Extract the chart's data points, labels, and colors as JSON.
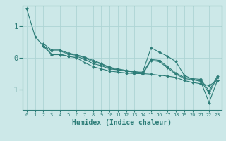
{
  "xlabel": "Humidex (Indice chaleur)",
  "bg_color": "#cce8e8",
  "grid_color": "#aed4d4",
  "line_color": "#2d7d78",
  "xlim": [
    -0.5,
    23.5
  ],
  "ylim": [
    -1.65,
    1.65
  ],
  "yticks": [
    -1,
    0,
    1
  ],
  "xticks": [
    0,
    1,
    2,
    3,
    4,
    5,
    6,
    7,
    8,
    9,
    10,
    11,
    12,
    13,
    14,
    15,
    16,
    17,
    18,
    19,
    20,
    21,
    22,
    23
  ],
  "series": [
    {
      "x": [
        0,
        1,
        2,
        3,
        4,
        5,
        6,
        7,
        8,
        9,
        10,
        11,
        12,
        13,
        14,
        15,
        16,
        17,
        18,
        19,
        20,
        21,
        22,
        23
      ],
      "y": [
        1.55,
        0.68,
        0.37,
        0.1,
        0.1,
        0.05,
        0.0,
        -0.15,
        -0.28,
        -0.35,
        -0.42,
        -0.45,
        -0.48,
        -0.5,
        -0.5,
        -0.52,
        -0.55,
        -0.58,
        -0.62,
        -0.72,
        -0.78,
        -0.82,
        -0.88,
        -0.72
      ]
    },
    {
      "x": [
        2,
        3,
        4,
        5,
        6,
        7,
        8,
        9,
        10,
        11,
        12,
        13,
        14,
        15,
        16,
        17,
        18,
        19,
        20,
        21,
        22,
        23
      ],
      "y": [
        0.38,
        0.12,
        0.12,
        0.05,
        0.05,
        -0.05,
        -0.18,
        -0.25,
        -0.35,
        -0.38,
        -0.42,
        -0.45,
        -0.45,
        0.32,
        0.18,
        0.05,
        -0.12,
        -0.55,
        -0.68,
        -0.75,
        -1.42,
        -0.72
      ]
    },
    {
      "x": [
        2,
        3,
        4,
        5,
        6,
        7,
        8,
        9,
        10,
        11,
        12,
        13,
        14,
        15,
        16,
        17,
        18,
        19,
        20,
        21,
        22,
        23
      ],
      "y": [
        0.38,
        0.22,
        0.22,
        0.12,
        0.08,
        0.0,
        -0.12,
        -0.2,
        -0.32,
        -0.38,
        -0.42,
        -0.45,
        -0.52,
        -0.08,
        -0.12,
        -0.32,
        -0.52,
        -0.65,
        -0.7,
        -0.72,
        -1.12,
        -0.62
      ]
    },
    {
      "x": [
        2,
        3,
        4,
        5,
        6,
        7,
        8,
        9,
        10,
        11,
        12,
        13,
        14,
        15,
        16,
        17,
        18,
        19,
        20,
        21,
        22,
        23
      ],
      "y": [
        0.45,
        0.25,
        0.25,
        0.15,
        0.1,
        0.02,
        -0.08,
        -0.18,
        -0.3,
        -0.35,
        -0.4,
        -0.43,
        -0.48,
        -0.05,
        -0.08,
        -0.28,
        -0.48,
        -0.62,
        -0.66,
        -0.68,
        -1.05,
        -0.58
      ]
    }
  ]
}
